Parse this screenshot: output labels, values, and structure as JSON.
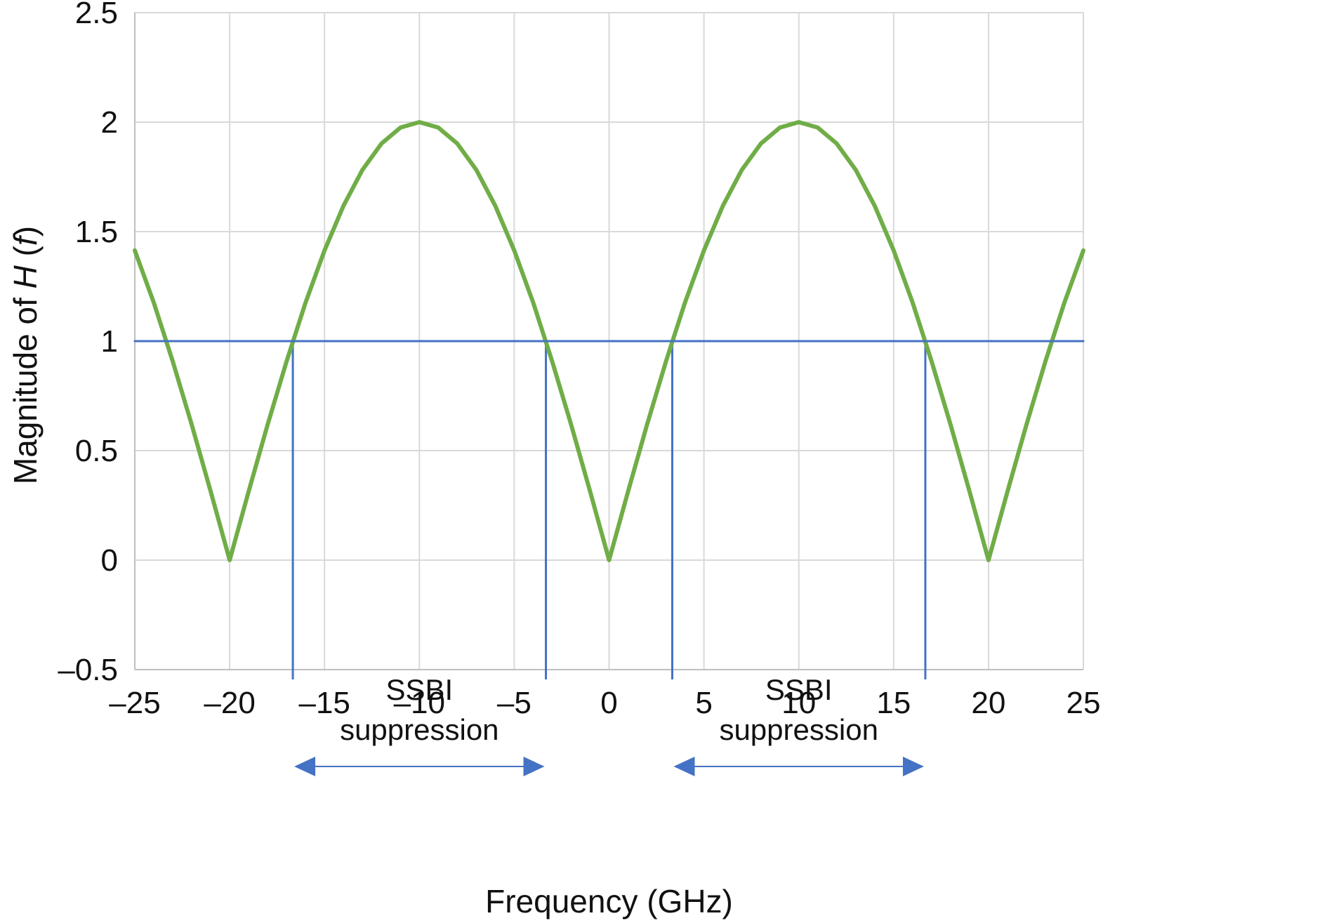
{
  "chart_data": {
    "type": "line",
    "xlabel": "Frequency (GHz)",
    "ylabel": {
      "prefix": "Magnitude of ",
      "var": "H",
      "mid": " (",
      "arg": "f",
      "suffix": ")"
    },
    "xlim": [
      -25,
      25
    ],
    "ylim": [
      -0.5,
      2.5
    ],
    "x_ticks": [
      -25,
      -20,
      -15,
      -10,
      -5,
      0,
      5,
      10,
      15,
      20,
      25
    ],
    "x_tick_labels": [
      "–25",
      "–20",
      "–15",
      "–10",
      "–5",
      "0",
      "5",
      "10",
      "15",
      "20",
      "25"
    ],
    "y_ticks": [
      -0.5,
      0,
      0.5,
      1,
      1.5,
      2,
      2.5
    ],
    "y_tick_labels": [
      "–0.5",
      "0",
      "0.5",
      "1",
      "1.5",
      "2",
      "2.5"
    ],
    "grid": true,
    "series": [
      {
        "color": "#70ad47",
        "x": [
          -25,
          -24,
          -23,
          -22,
          -21,
          -20,
          -19,
          -18,
          -17,
          -16,
          -15,
          -14,
          -13,
          -12,
          -11,
          -10,
          -9,
          -8,
          -7,
          -6,
          -5,
          -4,
          -3,
          -2,
          -1,
          0,
          1,
          2,
          3,
          4,
          5,
          6,
          7,
          8,
          9,
          10,
          11,
          12,
          13,
          14,
          15,
          16,
          17,
          18,
          19,
          20,
          21,
          22,
          23,
          24,
          25
        ],
        "y": [
          1.414,
          1.176,
          0.908,
          0.618,
          0.313,
          0.0,
          0.313,
          0.618,
          0.908,
          1.176,
          1.414,
          1.618,
          1.782,
          1.902,
          1.975,
          2.0,
          1.975,
          1.902,
          1.782,
          1.618,
          1.414,
          1.176,
          0.908,
          0.618,
          0.313,
          0.0,
          0.313,
          0.618,
          0.908,
          1.176,
          1.414,
          1.618,
          1.782,
          1.902,
          1.975,
          2.0,
          1.975,
          1.902,
          1.782,
          1.618,
          1.414,
          1.176,
          0.908,
          0.618,
          0.313,
          0.0,
          0.313,
          0.618,
          0.908,
          1.176,
          1.414
        ]
      },
      {
        "color": "#4472c4",
        "x": [
          -25,
          25
        ],
        "y": [
          1,
          1
        ]
      }
    ],
    "markers": {
      "color": "#4472c4",
      "x": [
        -16.67,
        -3.33,
        3.33,
        16.67
      ]
    },
    "annotations": [
      {
        "line1": "SSBI",
        "line2": "suppression",
        "from": -16.67,
        "to": -3.33
      },
      {
        "line1": "SSBI",
        "line2": "suppression",
        "from": 3.33,
        "to": 16.67
      }
    ]
  }
}
